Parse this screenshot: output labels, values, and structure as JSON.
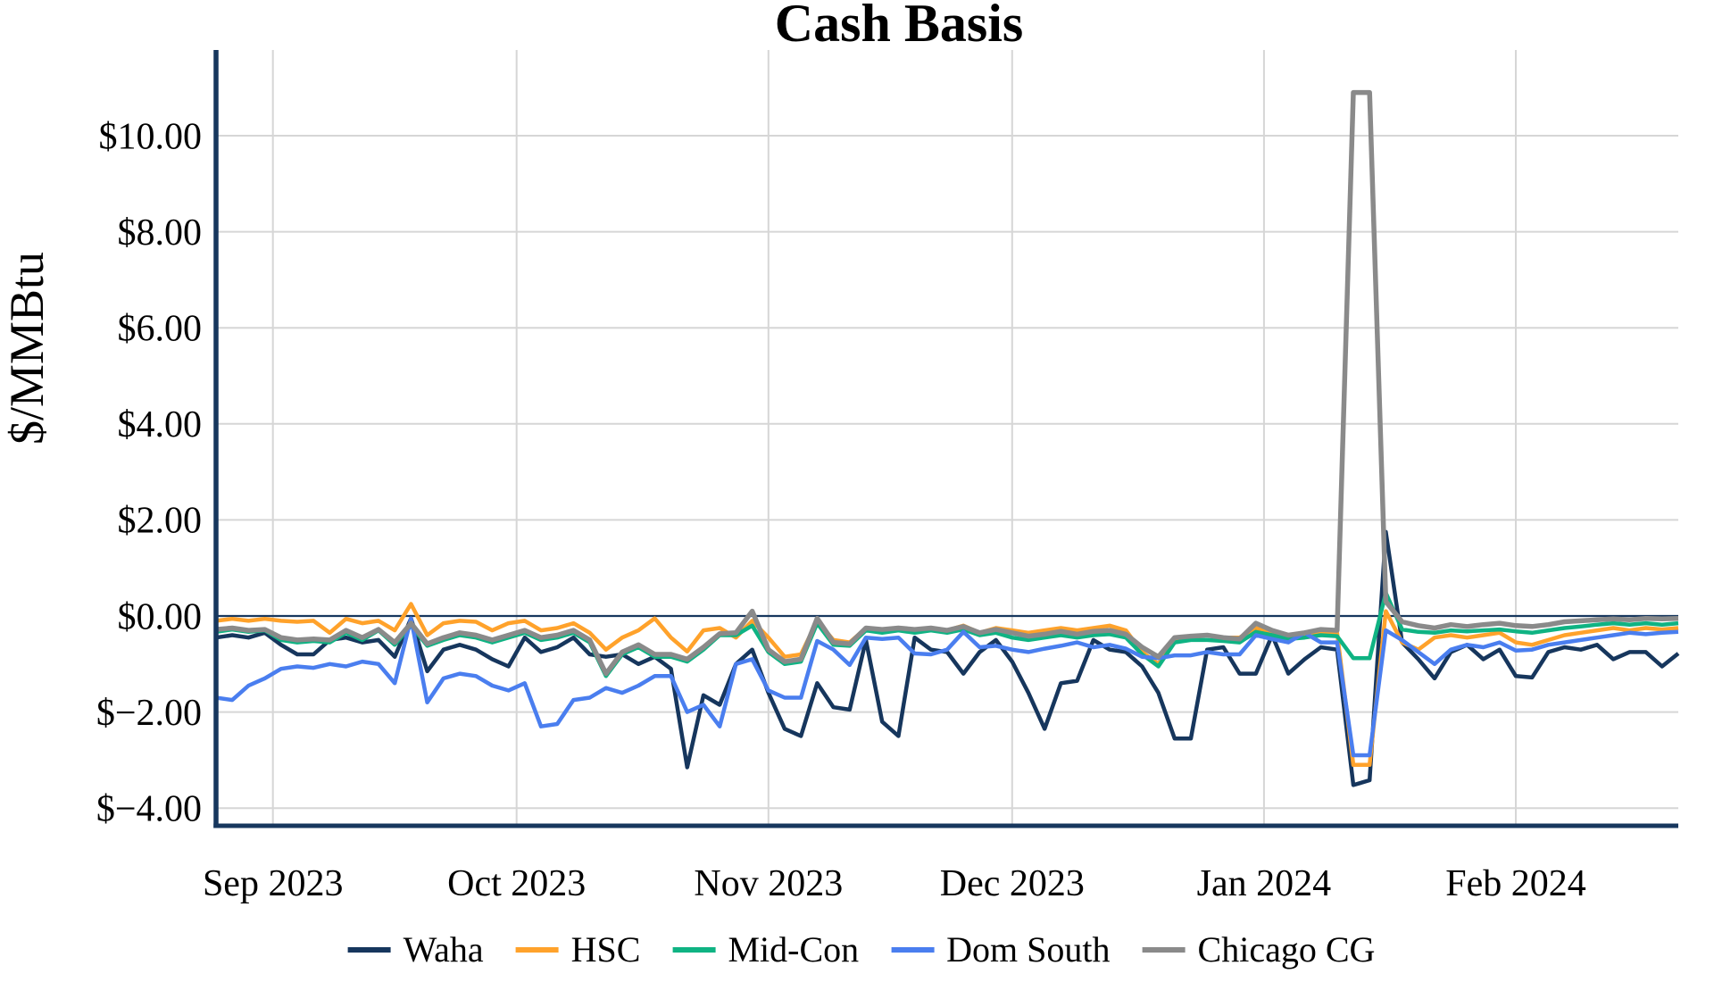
{
  "header": {
    "title": "Cash Basis"
  },
  "y_axis": {
    "label": "$/MMBtu"
  },
  "chart_data": {
    "type": "line",
    "title": "Cash Basis",
    "ylabel": "$/MMBtu",
    "xlabel": "",
    "unit": "$/MMBtu",
    "ylim": [
      -4.4,
      11.8
    ],
    "grid": true,
    "grid_color": "#D6D6D6",
    "axis_color": "#17375E",
    "zero_line": true,
    "legend_position": "bottom",
    "x_start_date": "2023-08-25",
    "x_step_days": 2,
    "x_tick_labels": [
      "Sep 2023",
      "Oct 2023",
      "Nov 2023",
      "Dec 2023",
      "Jan 2024",
      "Feb 2024"
    ],
    "x_tick_day_offsets": [
      7,
      37,
      68,
      98,
      129,
      160
    ],
    "y_tick_values": [
      10,
      8,
      6,
      4,
      2,
      0,
      -2,
      -4
    ],
    "y_tick_labels": [
      "$10.00",
      "$8.00",
      "$6.00",
      "$4.00",
      "$2.00",
      "$0.00",
      "$−2.00",
      "$−4.00"
    ],
    "event_note": "Chicago CG spikes to about $10.90 around Jan 13-15, 2024 while Waha, HSC and Dom South plunge below -$2.90",
    "series": [
      {
        "name": "Waha",
        "color": "#16365D",
        "values": [
          -0.45,
          -0.4,
          -0.45,
          -0.35,
          -0.6,
          -0.8,
          -0.8,
          -0.5,
          -0.45,
          -0.55,
          -0.5,
          -0.85,
          -0.05,
          -1.15,
          -0.7,
          -0.6,
          -0.7,
          -0.9,
          -1.05,
          -0.45,
          -0.75,
          -0.65,
          -0.45,
          -0.8,
          -0.85,
          -0.8,
          -1.0,
          -0.85,
          -1.1,
          -3.15,
          -1.65,
          -1.85,
          -1.0,
          -0.7,
          -1.6,
          -2.35,
          -2.5,
          -1.4,
          -1.9,
          -1.95,
          -0.5,
          -2.2,
          -2.5,
          -0.45,
          -0.7,
          -0.75,
          -1.2,
          -0.75,
          -0.5,
          -0.95,
          -1.6,
          -2.35,
          -1.4,
          -1.35,
          -0.5,
          -0.7,
          -0.75,
          -1.05,
          -1.6,
          -2.55,
          -2.55,
          -0.7,
          -0.65,
          -1.2,
          -1.2,
          -0.4,
          -1.2,
          -0.9,
          -0.65,
          -0.7,
          -3.52,
          -3.42,
          1.75,
          -0.55,
          -0.9,
          -1.3,
          -0.75,
          -0.6,
          -0.9,
          -0.7,
          -1.25,
          -1.28,
          -0.75,
          -0.65,
          -0.7,
          -0.6,
          -0.9,
          -0.75,
          -0.75,
          -1.05,
          -0.78
        ]
      },
      {
        "name": "HSC",
        "color": "#FFA22B",
        "values": [
          -0.1,
          -0.06,
          -0.1,
          -0.06,
          -0.1,
          -0.12,
          -0.1,
          -0.35,
          -0.06,
          -0.15,
          -0.1,
          -0.3,
          0.25,
          -0.4,
          -0.15,
          -0.1,
          -0.12,
          -0.3,
          -0.15,
          -0.1,
          -0.3,
          -0.25,
          -0.15,
          -0.35,
          -0.7,
          -0.45,
          -0.3,
          -0.05,
          -0.45,
          -0.74,
          -0.3,
          -0.25,
          -0.45,
          -0.1,
          -0.45,
          -0.85,
          -0.8,
          -0.1,
          -0.5,
          -0.55,
          -0.25,
          -0.3,
          -0.25,
          -0.3,
          -0.25,
          -0.3,
          -0.2,
          -0.35,
          -0.25,
          -0.3,
          -0.35,
          -0.3,
          -0.25,
          -0.3,
          -0.25,
          -0.2,
          -0.3,
          -0.75,
          -1.0,
          -0.5,
          -0.45,
          -0.4,
          -0.45,
          -0.45,
          -0.25,
          -0.35,
          -0.45,
          -0.4,
          -0.35,
          -0.35,
          -3.1,
          -3.1,
          0.1,
          -0.55,
          -0.7,
          -0.45,
          -0.4,
          -0.45,
          -0.4,
          -0.35,
          -0.55,
          -0.6,
          -0.5,
          -0.4,
          -0.35,
          -0.3,
          -0.25,
          -0.3,
          -0.25,
          -0.28,
          -0.25
        ]
      },
      {
        "name": "Mid-Con",
        "color": "#0FB383",
        "values": [
          -0.33,
          -0.28,
          -0.33,
          -0.3,
          -0.5,
          -0.55,
          -0.52,
          -0.55,
          -0.35,
          -0.5,
          -0.3,
          -0.6,
          -0.2,
          -0.62,
          -0.5,
          -0.4,
          -0.45,
          -0.55,
          -0.45,
          -0.35,
          -0.5,
          -0.45,
          -0.35,
          -0.55,
          -1.25,
          -0.8,
          -0.65,
          -0.85,
          -0.85,
          -0.95,
          -0.7,
          -0.4,
          -0.4,
          -0.2,
          -0.75,
          -1.0,
          -0.95,
          -0.15,
          -0.6,
          -0.62,
          -0.3,
          -0.35,
          -0.3,
          -0.35,
          -0.3,
          -0.35,
          -0.28,
          -0.4,
          -0.35,
          -0.45,
          -0.5,
          -0.45,
          -0.4,
          -0.45,
          -0.4,
          -0.38,
          -0.45,
          -0.8,
          -1.05,
          -0.55,
          -0.5,
          -0.5,
          -0.52,
          -0.55,
          -0.33,
          -0.4,
          -0.48,
          -0.45,
          -0.4,
          -0.42,
          -0.88,
          -0.88,
          0.48,
          -0.28,
          -0.33,
          -0.35,
          -0.3,
          -0.32,
          -0.3,
          -0.28,
          -0.32,
          -0.35,
          -0.3,
          -0.25,
          -0.22,
          -0.18,
          -0.15,
          -0.18,
          -0.15,
          -0.18,
          -0.15
        ]
      },
      {
        "name": "Dom South",
        "color": "#4A7EEF",
        "values": [
          -1.7,
          -1.75,
          -1.45,
          -1.3,
          -1.1,
          -1.05,
          -1.08,
          -1.0,
          -1.05,
          -0.95,
          -1.0,
          -1.4,
          -0.05,
          -1.8,
          -1.3,
          -1.2,
          -1.25,
          -1.45,
          -1.55,
          -1.4,
          -2.3,
          -2.25,
          -1.75,
          -1.7,
          -1.5,
          -1.6,
          -1.45,
          -1.25,
          -1.25,
          -2.0,
          -1.85,
          -2.3,
          -1.0,
          -0.9,
          -1.55,
          -1.7,
          -1.7,
          -0.52,
          -0.7,
          -1.02,
          -0.45,
          -0.48,
          -0.45,
          -0.78,
          -0.8,
          -0.7,
          -0.33,
          -0.65,
          -0.62,
          -0.7,
          -0.75,
          -0.68,
          -0.62,
          -0.55,
          -0.65,
          -0.6,
          -0.68,
          -0.85,
          -0.88,
          -0.82,
          -0.82,
          -0.75,
          -0.8,
          -0.8,
          -0.4,
          -0.48,
          -0.55,
          -0.35,
          -0.55,
          -0.55,
          -2.9,
          -2.9,
          -0.3,
          -0.5,
          -0.75,
          -1.0,
          -0.7,
          -0.6,
          -0.65,
          -0.55,
          -0.72,
          -0.7,
          -0.6,
          -0.55,
          -0.5,
          -0.45,
          -0.4,
          -0.35,
          -0.38,
          -0.35,
          -0.33
        ]
      },
      {
        "name": "Chicago CG",
        "color": "#8A8A8A",
        "values": [
          -0.28,
          -0.25,
          -0.3,
          -0.28,
          -0.45,
          -0.5,
          -0.48,
          -0.5,
          -0.3,
          -0.45,
          -0.28,
          -0.55,
          -0.15,
          -0.58,
          -0.45,
          -0.35,
          -0.4,
          -0.5,
          -0.4,
          -0.3,
          -0.45,
          -0.4,
          -0.3,
          -0.5,
          -1.2,
          -0.75,
          -0.6,
          -0.8,
          -0.8,
          -0.9,
          -0.65,
          -0.37,
          -0.35,
          0.1,
          -0.7,
          -0.95,
          -0.9,
          -0.05,
          -0.55,
          -0.58,
          -0.25,
          -0.28,
          -0.25,
          -0.28,
          -0.25,
          -0.3,
          -0.22,
          -0.35,
          -0.28,
          -0.35,
          -0.42,
          -0.38,
          -0.32,
          -0.38,
          -0.32,
          -0.3,
          -0.38,
          -0.65,
          -0.85,
          -0.45,
          -0.42,
          -0.4,
          -0.45,
          -0.48,
          -0.15,
          -0.3,
          -0.4,
          -0.35,
          -0.28,
          -0.3,
          10.9,
          10.9,
          0.3,
          -0.12,
          -0.2,
          -0.25,
          -0.18,
          -0.22,
          -0.18,
          -0.15,
          -0.2,
          -0.22,
          -0.18,
          -0.12,
          -0.1,
          -0.08,
          -0.06,
          -0.08,
          -0.05,
          -0.06,
          -0.05
        ]
      }
    ]
  }
}
